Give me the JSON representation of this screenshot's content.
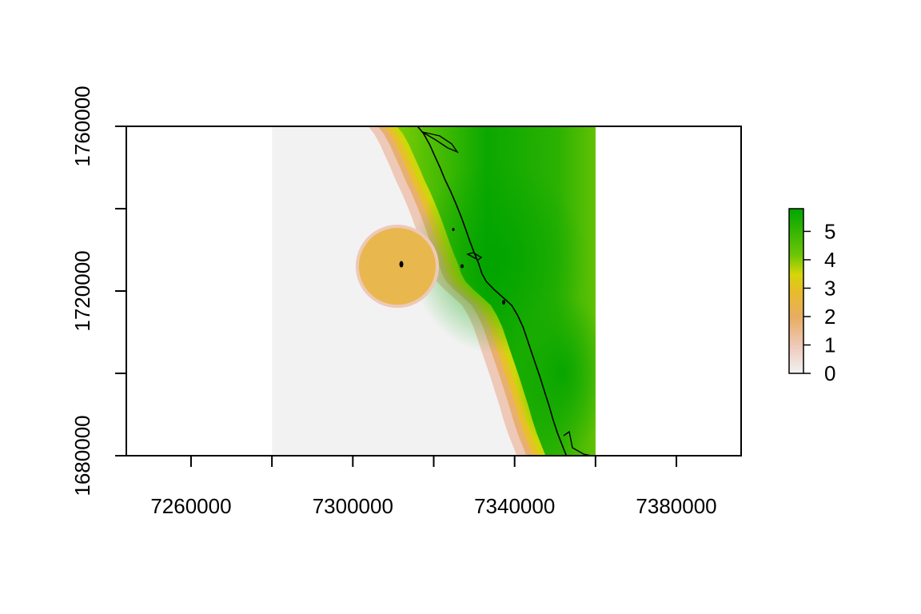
{
  "chart_data": {
    "type": "heatmap",
    "title": "",
    "xlabel": "",
    "ylabel": "",
    "xlim": [
      7244000,
      7396000
    ],
    "ylim": [
      1680000,
      1760000
    ],
    "raster_extent": {
      "x": [
        7280000,
        7360000
      ],
      "y": [
        1680000,
        1760000
      ]
    },
    "x_ticks": [
      7260000,
      7280000,
      7300000,
      7320000,
      7340000,
      7360000,
      7380000
    ],
    "x_tick_labels": [
      "7260000",
      "7300000",
      "7340000",
      "7380000"
    ],
    "x_tick_label_values": [
      7260000,
      7300000,
      7340000,
      7380000
    ],
    "y_ticks": [
      1680000,
      1700000,
      1720000,
      1740000,
      1760000
    ],
    "y_tick_labels": [
      "1680000",
      "1720000",
      "1760000"
    ],
    "y_tick_label_values": [
      1680000,
      1720000,
      1760000
    ],
    "grid": false,
    "legend": {
      "placement": "right",
      "type": "colorbar",
      "range": [
        0,
        5.8
      ],
      "tick_labels": [
        "0",
        "1",
        "2",
        "3",
        "4",
        "5"
      ],
      "tick_values": [
        0,
        1,
        2,
        3,
        4,
        5
      ],
      "colors": [
        "#f2f2f2",
        "#eec9b8",
        "#e8ad62",
        "#e7bc2a",
        "#d5d60a",
        "#6cc506",
        "#00a600"
      ]
    },
    "features": {
      "buffer_circle": {
        "center": [
          7311000,
          1726000
        ],
        "radius": 9500,
        "value": 2
      },
      "island": {
        "center": [
          7312000,
          1726500
        ]
      }
    },
    "shoreline": [
      [
        7316000,
        1760000
      ],
      [
        7317500,
        1758200
      ],
      [
        7319000,
        1755600
      ],
      [
        7320300,
        1752700
      ],
      [
        7321600,
        1749900
      ],
      [
        7322800,
        1747000
      ],
      [
        7324200,
        1744200
      ],
      [
        7325500,
        1741200
      ],
      [
        7326800,
        1738000
      ],
      [
        7327900,
        1735000
      ],
      [
        7328900,
        1732200
      ],
      [
        7330000,
        1729300
      ],
      [
        7331100,
        1726700
      ],
      [
        7331900,
        1724300
      ],
      [
        7333000,
        1722300
      ],
      [
        7335000,
        1720300
      ],
      [
        7337300,
        1718300
      ],
      [
        7339300,
        1716500
      ],
      [
        7340800,
        1714000
      ],
      [
        7342100,
        1711200
      ],
      [
        7343100,
        1708300
      ],
      [
        7344100,
        1705400
      ],
      [
        7345200,
        1702200
      ],
      [
        7346300,
        1699000
      ],
      [
        7347400,
        1695600
      ],
      [
        7348500,
        1692200
      ],
      [
        7349500,
        1688800
      ],
      [
        7350600,
        1685500
      ],
      [
        7351700,
        1682700
      ],
      [
        7352800,
        1680000
      ]
    ]
  }
}
